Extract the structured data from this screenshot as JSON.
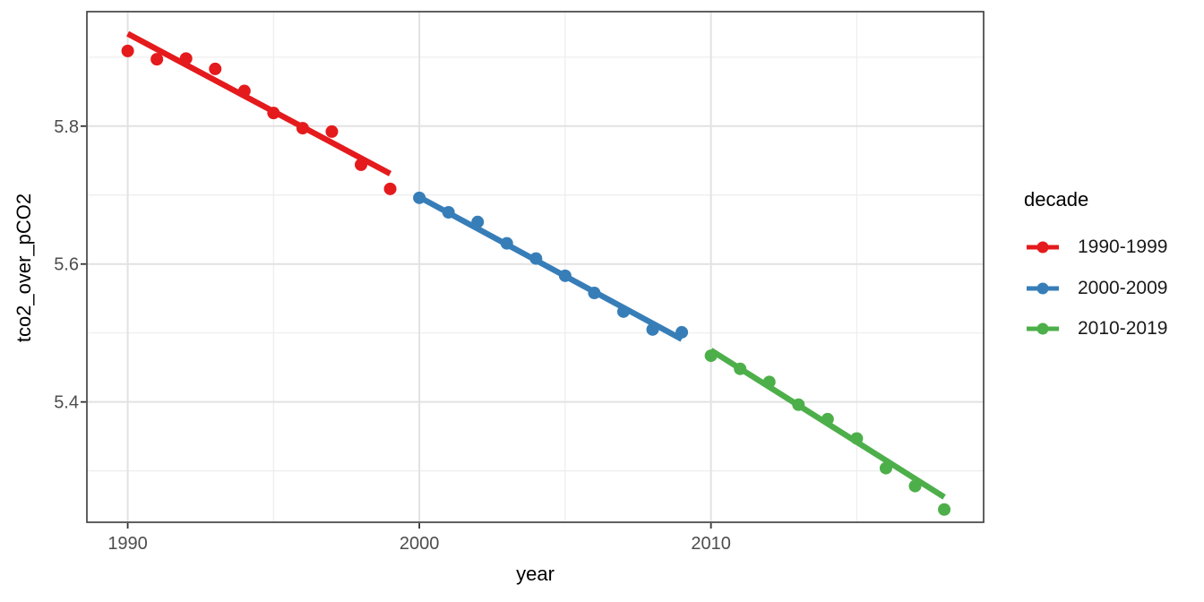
{
  "figure": {
    "xlabel": "year",
    "ylabel": "tco2_over_pCO2"
  },
  "legend": {
    "title": "decade",
    "items": [
      {
        "label": "1990-1999",
        "color": "#E41A1C"
      },
      {
        "label": "2000-2009",
        "color": "#377EB8"
      },
      {
        "label": "2010-2019",
        "color": "#4DAF4A"
      }
    ]
  },
  "colors": {
    "panel_border": "#383838",
    "grid_major": "#E2E2E2",
    "grid_minor": "#EDEDED",
    "tick_mark": "#333333",
    "tick_label": "#4d4d4d",
    "background": "#FFFFFF"
  },
  "chart_data": {
    "type": "scatter",
    "title": "",
    "xlabel": "year",
    "ylabel": "tco2_over_pCO2",
    "grid": true,
    "legend_position": "right",
    "legend_title": "decade",
    "xlim": [
      1988.6,
      2019.35
    ],
    "ylim": [
      5.2255,
      5.966
    ],
    "x_ticks": [
      {
        "value": 1990,
        "label": "1990"
      },
      {
        "value": 2000,
        "label": "2000"
      },
      {
        "value": 2010,
        "label": "2010"
      }
    ],
    "y_ticks": [
      {
        "value": 5.8,
        "label": "5.8"
      },
      {
        "value": 5.6,
        "label": "5.6"
      },
      {
        "value": 5.4,
        "label": "5.4"
      }
    ],
    "x_minor_gridlines": [
      1995,
      2005,
      2015
    ],
    "y_minor_gridlines": [
      5.9,
      5.7,
      5.5,
      5.3
    ],
    "series": [
      {
        "name": "1990-1999",
        "color": "#E41A1C",
        "x": [
          1990,
          1991,
          1992,
          1993,
          1994,
          1995,
          1996,
          1997,
          1998,
          1999
        ],
        "y": [
          5.909,
          5.897,
          5.898,
          5.883,
          5.851,
          5.819,
          5.797,
          5.792,
          5.744,
          5.709
        ],
        "trend": {
          "x": [
            1990,
            1999
          ],
          "y": [
            5.934,
            5.731
          ]
        }
      },
      {
        "name": "2000-2009",
        "color": "#377EB8",
        "x": [
          2000,
          2001,
          2002,
          2003,
          2004,
          2005,
          2006,
          2007,
          2008,
          2009
        ],
        "y": [
          5.696,
          5.675,
          5.661,
          5.63,
          5.608,
          5.583,
          5.558,
          5.531,
          5.505,
          5.501
        ],
        "trend": {
          "x": [
            2000,
            2009
          ],
          "y": [
            5.697,
            5.491
          ]
        }
      },
      {
        "name": "2010-2019",
        "color": "#4DAF4A",
        "x": [
          2010,
          2011,
          2012,
          2013,
          2014,
          2015,
          2016,
          2017,
          2018
        ],
        "y": [
          5.467,
          5.448,
          5.429,
          5.396,
          5.375,
          5.347,
          5.304,
          5.278,
          5.244
        ],
        "trend": {
          "x": [
            2010,
            2018
          ],
          "y": [
            5.475,
            5.262
          ]
        }
      }
    ]
  }
}
